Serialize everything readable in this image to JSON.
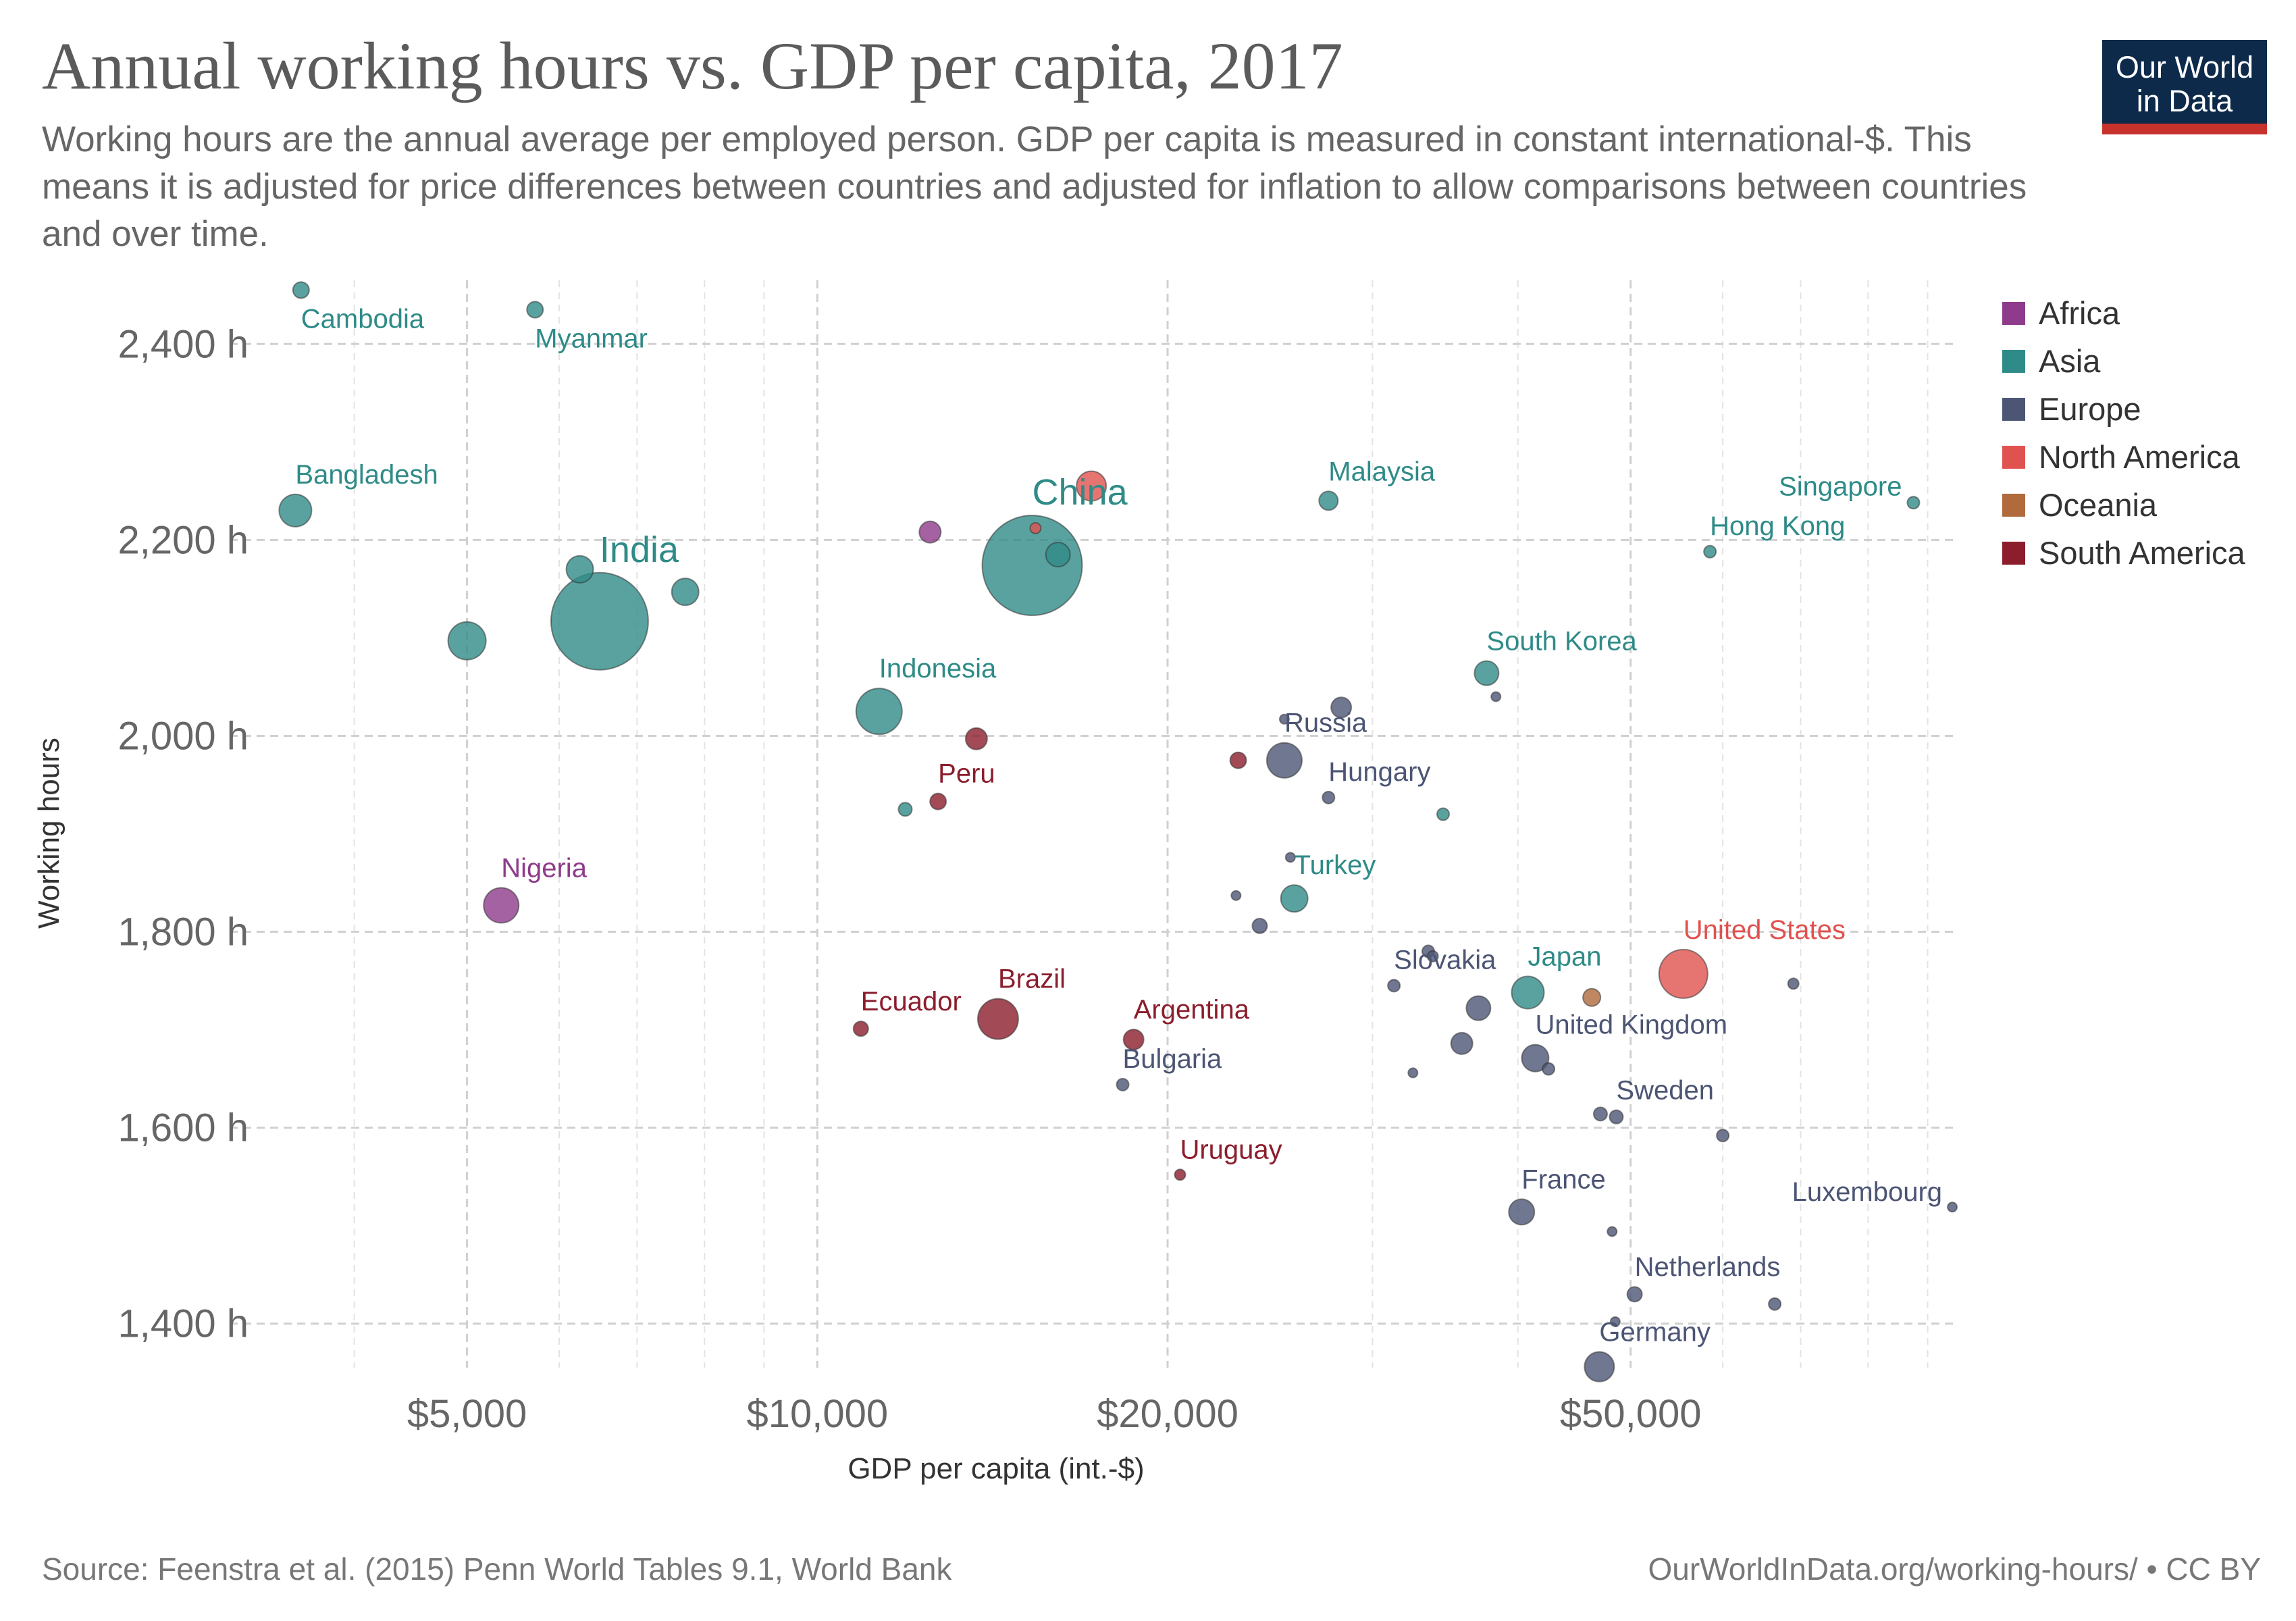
{
  "header": {
    "title": "Annual working hours vs. GDP per capita, 2017",
    "subtitle": "Working hours are the annual average per employed person. GDP per capita is measured in constant international-$. This means it is adjusted for price differences between countries and adjusted for inflation to allow comparisons between countries and over time."
  },
  "logo": {
    "line1": "Our World",
    "line2": "in Data",
    "bg": "#0d2a4b",
    "bar": "#c8322c"
  },
  "footer": {
    "source": "Source: Feenstra et al. (2015) Penn World Tables 9.1, World Bank",
    "license": "OurWorldInData.org/working-hours/ • CC BY"
  },
  "legend": [
    {
      "label": "Africa",
      "color": "#8e3b8b"
    },
    {
      "label": "Asia",
      "color": "#2f8b87"
    },
    {
      "label": "Europe",
      "color": "#4c5574"
    },
    {
      "label": "North America",
      "color": "#e0524f"
    },
    {
      "label": "Oceania",
      "color": "#b06a3b"
    },
    {
      "label": "South America",
      "color": "#8b1d2c"
    }
  ],
  "chart_data": {
    "type": "scatter",
    "title": "Annual working hours vs. GDP per capita, 2017",
    "xlabel": "GDP per capita (int.-$)",
    "ylabel": "Working hours",
    "x_scale": "log",
    "xlim": [
      3400,
      95000
    ],
    "ylim": [
      1355,
      2465
    ],
    "x_ticks": [
      {
        "value": 5000,
        "label": "$5,000"
      },
      {
        "value": 10000,
        "label": "$10,000"
      },
      {
        "value": 20000,
        "label": "$20,000"
      },
      {
        "value": 50000,
        "label": "$50,000"
      }
    ],
    "x_minor_gridlines": [
      4000,
      6000,
      7000,
      8000,
      9000,
      30000,
      40000,
      60000,
      70000,
      80000,
      90000
    ],
    "y_ticks": [
      {
        "value": 1400,
        "label": "1,400 h"
      },
      {
        "value": 1600,
        "label": "1,600 h"
      },
      {
        "value": 1800,
        "label": "1,800 h"
      },
      {
        "value": 2000,
        "label": "2,000 h"
      },
      {
        "value": 2200,
        "label": "2,200 h"
      },
      {
        "value": 2400,
        "label": "2,400 h"
      }
    ],
    "grid": true,
    "legend_position": "right",
    "points": [
      {
        "label": "Cambodia",
        "x": 3600,
        "y": 2455,
        "size": 12,
        "region": "Asia"
      },
      {
        "label": "Myanmar",
        "x": 5720,
        "y": 2435,
        "size": 12,
        "region": "Asia"
      },
      {
        "label": "Bangladesh",
        "x": 3560,
        "y": 2230,
        "size": 24,
        "region": "Asia"
      },
      {
        "label": "India",
        "x": 6500,
        "y": 2117,
        "size": 72,
        "region": "Asia"
      },
      {
        "label": "",
        "x": 5000,
        "y": 2097,
        "size": 28,
        "region": "Asia"
      },
      {
        "label": "",
        "x": 6250,
        "y": 2170,
        "size": 20,
        "region": "Asia"
      },
      {
        "label": "",
        "x": 7700,
        "y": 2147,
        "size": 20,
        "region": "Asia"
      },
      {
        "label": "Nigeria",
        "x": 5350,
        "y": 1827,
        "size": 26,
        "region": "Africa"
      },
      {
        "label": "",
        "x": 12500,
        "y": 2208,
        "size": 16,
        "region": "Africa"
      },
      {
        "label": "China",
        "x": 15300,
        "y": 2174,
        "size": 74,
        "region": "Asia"
      },
      {
        "label": "",
        "x": 16100,
        "y": 2185,
        "size": 18,
        "region": "Asia"
      },
      {
        "label": "",
        "x": 17200,
        "y": 2255,
        "size": 22,
        "region": "North America"
      },
      {
        "label": "",
        "x": 15400,
        "y": 2212,
        "size": 8,
        "region": "North America"
      },
      {
        "label": "Indonesia",
        "x": 11300,
        "y": 2025,
        "size": 34,
        "region": "Asia"
      },
      {
        "label": "",
        "x": 13700,
        "y": 1997,
        "size": 16,
        "region": "South America"
      },
      {
        "label": "Peru",
        "x": 12700,
        "y": 1933,
        "size": 12,
        "region": "South America"
      },
      {
        "label": "",
        "x": 11900,
        "y": 1925,
        "size": 10,
        "region": "Asia"
      },
      {
        "label": "Ecuador",
        "x": 10900,
        "y": 1701,
        "size": 11,
        "region": "South America"
      },
      {
        "label": "Brazil",
        "x": 14300,
        "y": 1711,
        "size": 30,
        "region": "South America"
      },
      {
        "label": "Argentina",
        "x": 18700,
        "y": 1690,
        "size": 15,
        "region": "South America"
      },
      {
        "label": "Bulgaria",
        "x": 18300,
        "y": 1644,
        "size": 9,
        "region": "Europe"
      },
      {
        "label": "Uruguay",
        "x": 20500,
        "y": 1552,
        "size": 8,
        "region": "South America"
      },
      {
        "label": "Malaysia",
        "x": 27500,
        "y": 2240,
        "size": 14,
        "region": "Asia"
      },
      {
        "label": "",
        "x": 28200,
        "y": 2029,
        "size": 15,
        "region": "Europe"
      },
      {
        "label": "",
        "x": 25200,
        "y": 2017,
        "size": 7,
        "region": "Europe"
      },
      {
        "label": "Russia",
        "x": 25200,
        "y": 1975,
        "size": 26,
        "region": "Europe"
      },
      {
        "label": "",
        "x": 23000,
        "y": 1975,
        "size": 12,
        "region": "South America"
      },
      {
        "label": "Hungary",
        "x": 27500,
        "y": 1937,
        "size": 9,
        "region": "Europe"
      },
      {
        "label": "",
        "x": 25500,
        "y": 1876,
        "size": 7,
        "region": "Europe"
      },
      {
        "label": "",
        "x": 22900,
        "y": 1837,
        "size": 7,
        "region": "Europe"
      },
      {
        "label": "Turkey",
        "x": 25700,
        "y": 1834,
        "size": 20,
        "region": "Asia"
      },
      {
        "label": "",
        "x": 24000,
        "y": 1806,
        "size": 11,
        "region": "Europe"
      },
      {
        "label": "",
        "x": 34500,
        "y": 1920,
        "size": 9,
        "region": "Asia"
      },
      {
        "label": "South Korea",
        "x": 37600,
        "y": 2064,
        "size": 18,
        "region": "Asia"
      },
      {
        "label": "",
        "x": 38300,
        "y": 2040,
        "size": 7,
        "region": "Europe"
      },
      {
        "label": "Singapore",
        "x": 87500,
        "y": 2238,
        "size": 9,
        "region": "Asia"
      },
      {
        "label": "Hong Kong",
        "x": 58500,
        "y": 2188,
        "size": 9,
        "region": "Asia"
      },
      {
        "label": "",
        "x": 33500,
        "y": 1780,
        "size": 9,
        "region": "Europe"
      },
      {
        "label": "",
        "x": 33800,
        "y": 1775,
        "size": 8,
        "region": "Europe"
      },
      {
        "label": "Slovakia",
        "x": 31300,
        "y": 1745,
        "size": 9,
        "region": "Europe"
      },
      {
        "label": "",
        "x": 37000,
        "y": 1722,
        "size": 18,
        "region": "Europe"
      },
      {
        "label": "",
        "x": 35800,
        "y": 1686,
        "size": 16,
        "region": "Europe"
      },
      {
        "label": "",
        "x": 32500,
        "y": 1656,
        "size": 7,
        "region": "Europe"
      },
      {
        "label": "Japan",
        "x": 40800,
        "y": 1738,
        "size": 24,
        "region": "Asia"
      },
      {
        "label": "",
        "x": 46300,
        "y": 1733,
        "size": 13,
        "region": "Oceania"
      },
      {
        "label": "United States",
        "x": 55500,
        "y": 1757,
        "size": 36,
        "region": "North America"
      },
      {
        "label": "",
        "x": 69000,
        "y": 1747,
        "size": 8,
        "region": "Europe"
      },
      {
        "label": "United Kingdom",
        "x": 41400,
        "y": 1671,
        "size": 20,
        "region": "Europe"
      },
      {
        "label": "",
        "x": 42500,
        "y": 1660,
        "size": 9,
        "region": "Europe"
      },
      {
        "label": "",
        "x": 47100,
        "y": 1614,
        "size": 10,
        "region": "Europe"
      },
      {
        "label": "Sweden",
        "x": 48600,
        "y": 1611,
        "size": 10,
        "region": "Europe"
      },
      {
        "label": "",
        "x": 60000,
        "y": 1592,
        "size": 9,
        "region": "Europe"
      },
      {
        "label": "France",
        "x": 40300,
        "y": 1514,
        "size": 19,
        "region": "Europe"
      },
      {
        "label": "",
        "x": 48200,
        "y": 1494,
        "size": 7,
        "region": "Europe"
      },
      {
        "label": "Luxembourg",
        "x": 94500,
        "y": 1519,
        "size": 7,
        "region": "Europe"
      },
      {
        "label": "Netherlands",
        "x": 50400,
        "y": 1430,
        "size": 11,
        "region": "Europe"
      },
      {
        "label": "",
        "x": 66500,
        "y": 1420,
        "size": 9,
        "region": "Europe"
      },
      {
        "label": "",
        "x": 48500,
        "y": 1402,
        "size": 7,
        "region": "Europe"
      },
      {
        "label": "Germany",
        "x": 47000,
        "y": 1356,
        "size": 22,
        "region": "Europe"
      }
    ]
  }
}
